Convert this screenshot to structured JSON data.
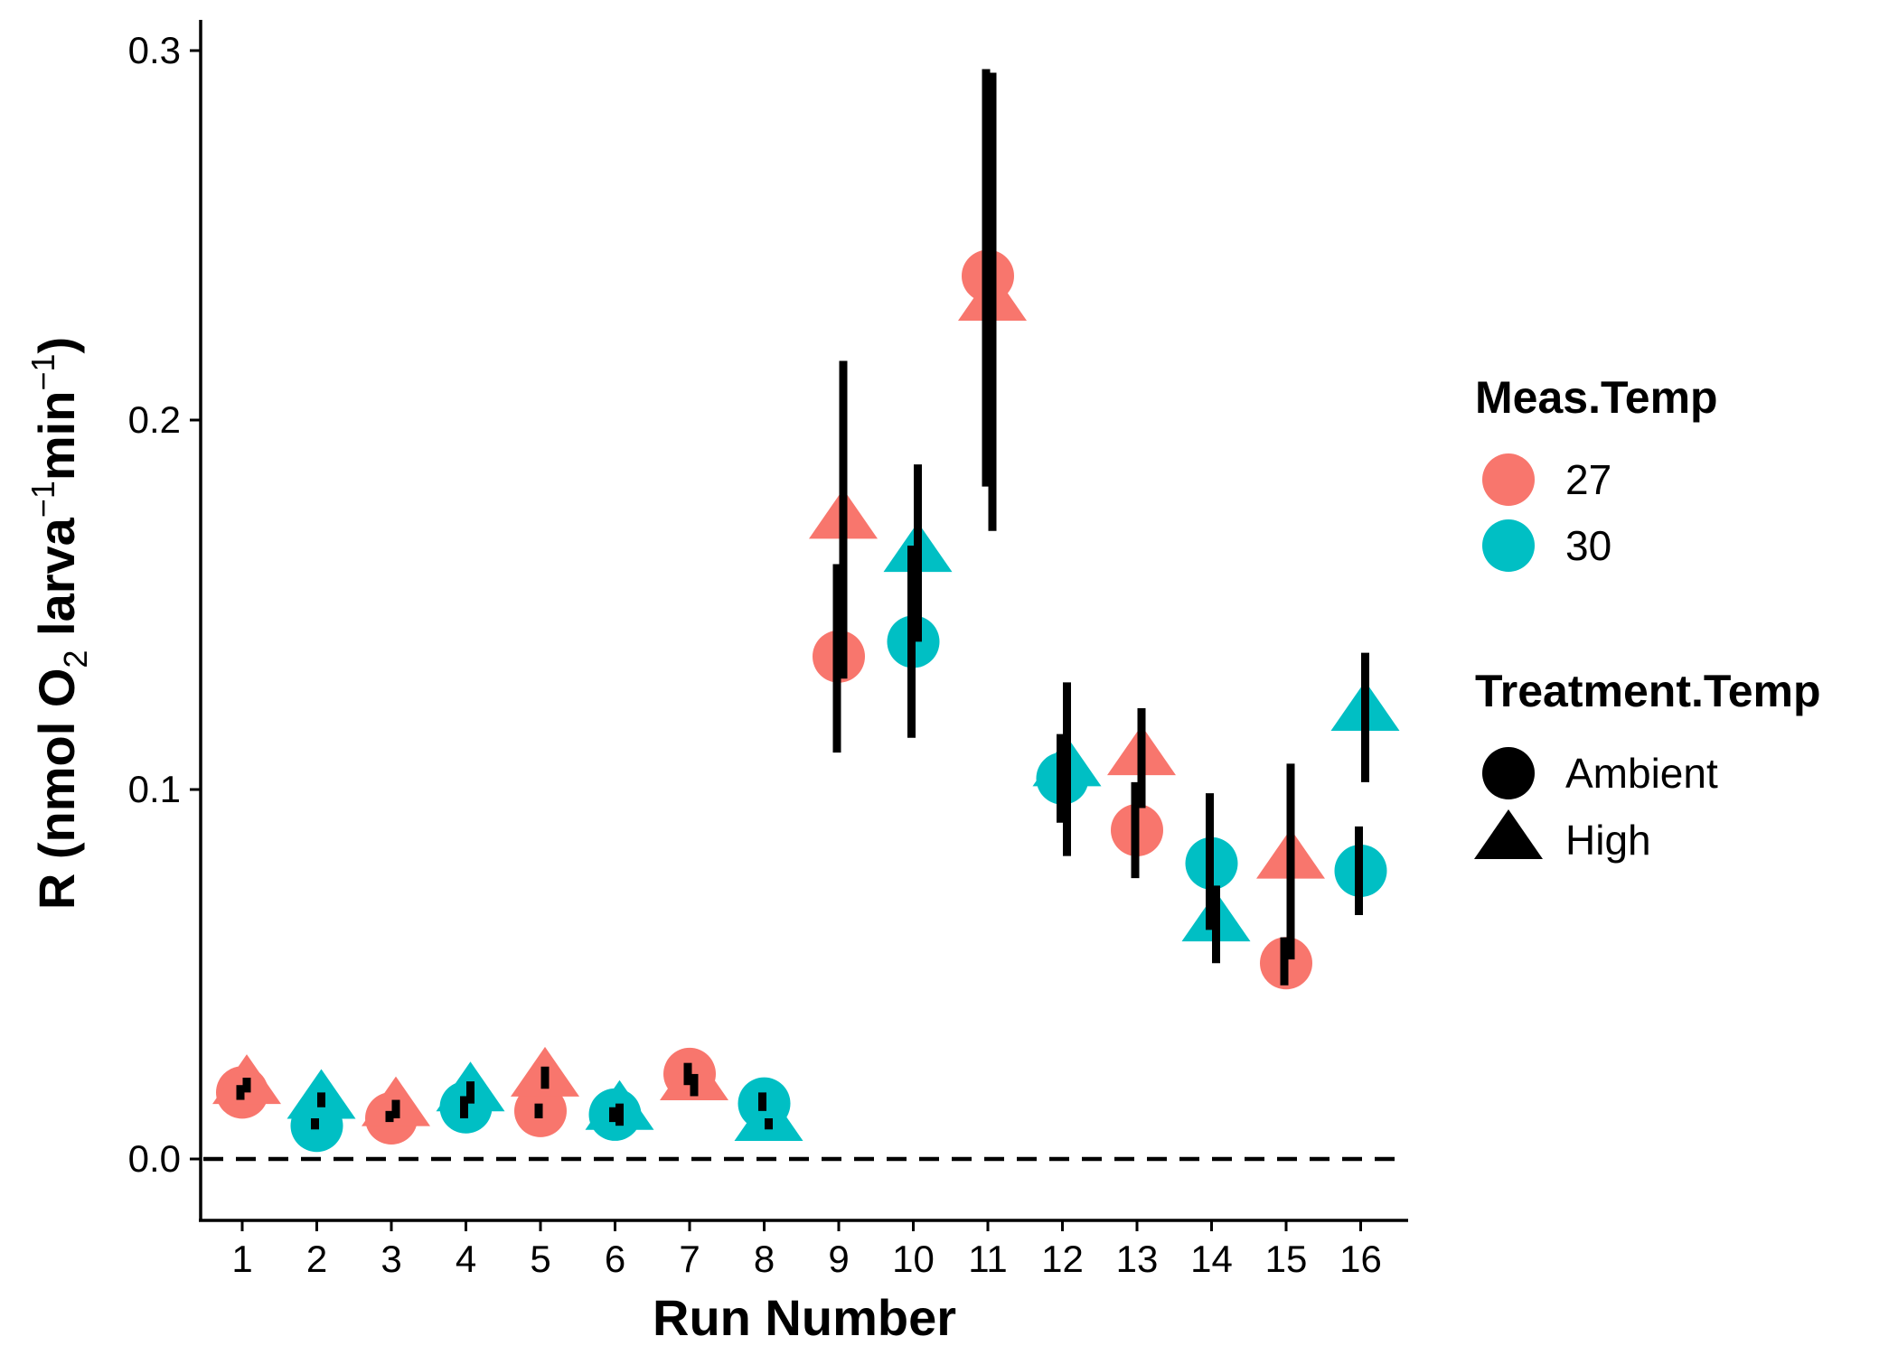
{
  "chart_data": {
    "type": "scatter",
    "xlabel": "Run Number",
    "ylabel_parts": [
      "R (nmol O",
      "2",
      " larva",
      "−1",
      "min",
      "−1",
      ")"
    ],
    "ylim": [
      -0.015,
      0.31
    ],
    "y_ticks": [
      0.0,
      0.1,
      0.2,
      0.3
    ],
    "y_tick_labels": [
      "0.0",
      "0.1",
      "0.2",
      "0.3"
    ],
    "x_categories": [
      "1",
      "2",
      "3",
      "4",
      "5",
      "6",
      "7",
      "8",
      "9",
      "10",
      "11",
      "12",
      "13",
      "14",
      "15",
      "16"
    ],
    "reference_line": {
      "y": 0,
      "style": "dashed"
    },
    "grid": false,
    "legend_position": "right",
    "colors": {
      "27": "#F8766D",
      "30": "#00BFC4",
      "error_bar": "#000000"
    },
    "legends": {
      "color": {
        "title": "Meas.Temp",
        "entries": [
          "27",
          "30"
        ]
      },
      "shape": {
        "title": "Treatment.Temp",
        "entries": [
          "Ambient",
          "High"
        ]
      }
    },
    "points": [
      {
        "run": 1,
        "meas": "27",
        "treat": "Ambient",
        "y": 0.018,
        "lo": 0.016,
        "hi": 0.02
      },
      {
        "run": 1,
        "meas": "27",
        "treat": "High",
        "y": 0.02,
        "lo": 0.018,
        "hi": 0.022
      },
      {
        "run": 2,
        "meas": "30",
        "treat": "Ambient",
        "y": 0.009,
        "lo": 0.008,
        "hi": 0.011
      },
      {
        "run": 2,
        "meas": "30",
        "treat": "High",
        "y": 0.016,
        "lo": 0.014,
        "hi": 0.018
      },
      {
        "run": 3,
        "meas": "27",
        "treat": "Ambient",
        "y": 0.011,
        "lo": 0.01,
        "hi": 0.013
      },
      {
        "run": 3,
        "meas": "27",
        "treat": "High",
        "y": 0.014,
        "lo": 0.011,
        "hi": 0.016
      },
      {
        "run": 4,
        "meas": "30",
        "treat": "Ambient",
        "y": 0.014,
        "lo": 0.011,
        "hi": 0.017
      },
      {
        "run": 4,
        "meas": "30",
        "treat": "High",
        "y": 0.018,
        "lo": 0.015,
        "hi": 0.021
      },
      {
        "run": 5,
        "meas": "27",
        "treat": "Ambient",
        "y": 0.013,
        "lo": 0.011,
        "hi": 0.015
      },
      {
        "run": 5,
        "meas": "27",
        "treat": "High",
        "y": 0.022,
        "lo": 0.019,
        "hi": 0.025
      },
      {
        "run": 6,
        "meas": "30",
        "treat": "Ambient",
        "y": 0.012,
        "lo": 0.01,
        "hi": 0.014
      },
      {
        "run": 6,
        "meas": "30",
        "treat": "High",
        "y": 0.013,
        "lo": 0.009,
        "hi": 0.015
      },
      {
        "run": 7,
        "meas": "27",
        "treat": "Ambient",
        "y": 0.023,
        "lo": 0.02,
        "hi": 0.026
      },
      {
        "run": 7,
        "meas": "27",
        "treat": "High",
        "y": 0.021,
        "lo": 0.017,
        "hi": 0.023
      },
      {
        "run": 8,
        "meas": "30",
        "treat": "Ambient",
        "y": 0.015,
        "lo": 0.013,
        "hi": 0.018
      },
      {
        "run": 8,
        "meas": "30",
        "treat": "High",
        "y": 0.01,
        "lo": 0.008,
        "hi": 0.011
      },
      {
        "run": 9,
        "meas": "27",
        "treat": "Ambient",
        "y": 0.136,
        "lo": 0.11,
        "hi": 0.161
      },
      {
        "run": 9,
        "meas": "27",
        "treat": "High",
        "y": 0.173,
        "lo": 0.13,
        "hi": 0.216
      },
      {
        "run": 10,
        "meas": "30",
        "treat": "Ambient",
        "y": 0.14,
        "lo": 0.114,
        "hi": 0.166
      },
      {
        "run": 10,
        "meas": "30",
        "treat": "High",
        "y": 0.164,
        "lo": 0.14,
        "hi": 0.188
      },
      {
        "run": 11,
        "meas": "27",
        "treat": "Ambient",
        "y": 0.239,
        "lo": 0.182,
        "hi": 0.295
      },
      {
        "run": 11,
        "meas": "27",
        "treat": "High",
        "y": 0.232,
        "lo": 0.17,
        "hi": 0.294
      },
      {
        "run": 12,
        "meas": "30",
        "treat": "Ambient",
        "y": 0.103,
        "lo": 0.091,
        "hi": 0.115
      },
      {
        "run": 12,
        "meas": "30",
        "treat": "High",
        "y": 0.106,
        "lo": 0.082,
        "hi": 0.129
      },
      {
        "run": 13,
        "meas": "27",
        "treat": "Ambient",
        "y": 0.089,
        "lo": 0.076,
        "hi": 0.102
      },
      {
        "run": 13,
        "meas": "27",
        "treat": "High",
        "y": 0.109,
        "lo": 0.095,
        "hi": 0.122
      },
      {
        "run": 14,
        "meas": "30",
        "treat": "Ambient",
        "y": 0.08,
        "lo": 0.062,
        "hi": 0.099
      },
      {
        "run": 14,
        "meas": "30",
        "treat": "High",
        "y": 0.064,
        "lo": 0.053,
        "hi": 0.074
      },
      {
        "run": 15,
        "meas": "27",
        "treat": "Ambient",
        "y": 0.053,
        "lo": 0.047,
        "hi": 0.06
      },
      {
        "run": 15,
        "meas": "27",
        "treat": "High",
        "y": 0.081,
        "lo": 0.054,
        "hi": 0.107
      },
      {
        "run": 16,
        "meas": "30",
        "treat": "Ambient",
        "y": 0.078,
        "lo": 0.066,
        "hi": 0.09
      },
      {
        "run": 16,
        "meas": "30",
        "treat": "High",
        "y": 0.121,
        "lo": 0.102,
        "hi": 0.137
      }
    ]
  }
}
